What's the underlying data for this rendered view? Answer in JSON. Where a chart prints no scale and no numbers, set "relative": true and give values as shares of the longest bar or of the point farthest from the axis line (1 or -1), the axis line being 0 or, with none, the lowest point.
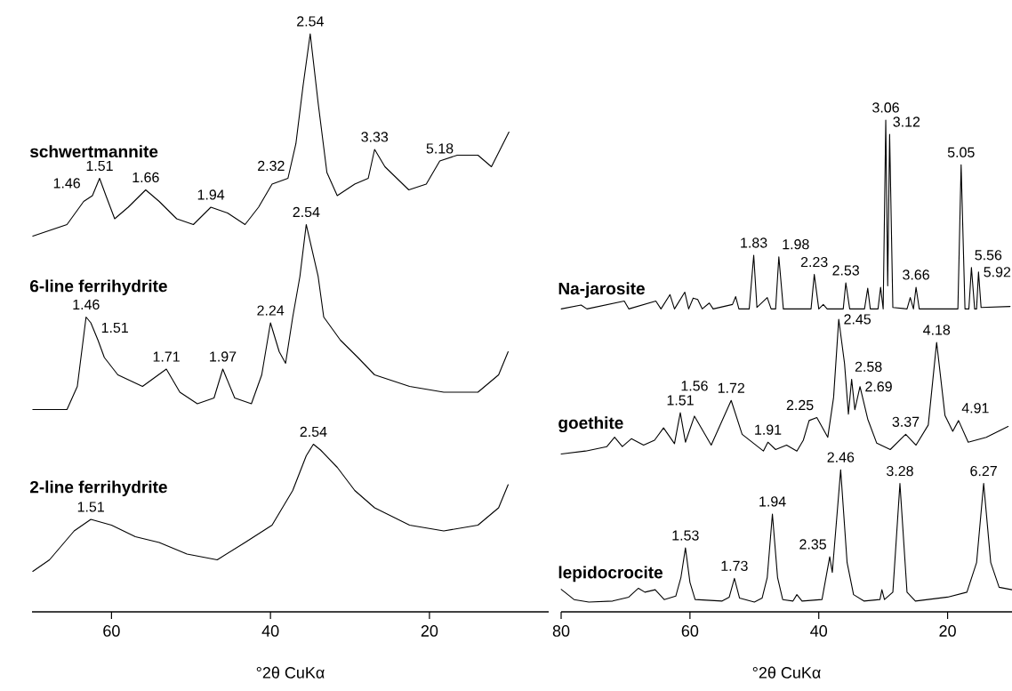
{
  "chart_data": [
    {
      "type": "line",
      "relative": true,
      "xlim": [
        70,
        5
      ],
      "xticks": [
        60,
        40,
        20
      ],
      "xlabel": "°2θ CuKα",
      "series": [
        {
          "name": "schwertmannite",
          "color": "#000000",
          "x": [
            69.9,
            65.6,
            63.5,
            62.4,
            61.5,
            60.7,
            59.6,
            57.9,
            55.7,
            54.0,
            51.8,
            49.7,
            47.5,
            45.4,
            43.2,
            41.5,
            39.8,
            37.8,
            36.8,
            35.9,
            35.0,
            34.0,
            32.9,
            31.6,
            29.4,
            27.7,
            26.9,
            25.6,
            22.6,
            20.4,
            18.7,
            16.5,
            13.9,
            12.2,
            10.0
          ],
          "values": [
            0.65,
            0.67,
            0.71,
            0.72,
            0.75,
            0.72,
            0.68,
            0.7,
            0.73,
            0.71,
            0.68,
            0.67,
            0.7,
            0.69,
            0.67,
            0.7,
            0.74,
            0.75,
            0.81,
            0.91,
            1.0,
            0.88,
            0.76,
            0.72,
            0.74,
            0.75,
            0.8,
            0.77,
            0.73,
            0.74,
            0.78,
            0.79,
            0.79,
            0.77,
            0.83
          ]
        },
        {
          "name": "6-line ferrihydrite",
          "color": "#000000",
          "x": [
            69.9,
            65.6,
            64.3,
            63.2,
            62.6,
            61.7,
            60.9,
            59.2,
            56.1,
            53.1,
            51.4,
            49.2,
            47.1,
            46.0,
            44.5,
            42.4,
            41.1,
            40.0,
            38.9,
            38.1,
            37.2,
            36.3,
            35.5,
            34.0,
            33.3,
            31.2,
            29.0,
            26.9,
            22.5,
            18.2,
            13.9,
            11.3,
            10.1
          ],
          "values": [
            0.35,
            0.35,
            0.39,
            0.51,
            0.5,
            0.47,
            0.44,
            0.41,
            0.39,
            0.42,
            0.38,
            0.36,
            0.37,
            0.42,
            0.37,
            0.36,
            0.41,
            0.5,
            0.45,
            0.43,
            0.51,
            0.58,
            0.67,
            0.58,
            0.51,
            0.47,
            0.44,
            0.41,
            0.39,
            0.38,
            0.38,
            0.41,
            0.45
          ]
        },
        {
          "name": "2-line ferrihydrite",
          "color": "#000000",
          "x": [
            69.9,
            67.8,
            64.7,
            62.6,
            60.0,
            57.0,
            54.0,
            50.5,
            46.7,
            43.2,
            39.8,
            37.2,
            35.5,
            34.6,
            33.7,
            31.6,
            29.4,
            26.9,
            22.5,
            18.2,
            13.9,
            11.3,
            10.1
          ],
          "values": [
            0.07,
            0.09,
            0.14,
            0.16,
            0.15,
            0.13,
            0.12,
            0.1,
            0.09,
            0.12,
            0.15,
            0.21,
            0.27,
            0.29,
            0.28,
            0.25,
            0.21,
            0.18,
            0.15,
            0.14,
            0.15,
            0.18,
            0.22
          ]
        }
      ],
      "annotations": [
        {
          "text": "2.54",
          "x": 35.0,
          "y": 1.0
        },
        {
          "text": "1.46",
          "x": 63.5,
          "y": 0.72
        },
        {
          "text": "1.51",
          "x": 61.5,
          "y": 0.75
        },
        {
          "text": "1.66",
          "x": 55.7,
          "y": 0.73
        },
        {
          "text": "1.94",
          "x": 47.5,
          "y": 0.7
        },
        {
          "text": "2.32",
          "x": 37.8,
          "y": 0.75
        },
        {
          "text": "3.33",
          "x": 26.9,
          "y": 0.8
        },
        {
          "text": "5.18",
          "x": 18.7,
          "y": 0.78
        },
        {
          "text": "2.54",
          "x": 35.5,
          "y": 0.67
        },
        {
          "text": "1.46",
          "x": 63.2,
          "y": 0.51
        },
        {
          "text": "1.51",
          "x": 61.7,
          "y": 0.47
        },
        {
          "text": "1.71",
          "x": 53.1,
          "y": 0.42
        },
        {
          "text": "1.97",
          "x": 46.0,
          "y": 0.42
        },
        {
          "text": "2.24",
          "x": 40.0,
          "y": 0.5
        },
        {
          "text": "2.54",
          "x": 34.6,
          "y": 0.29
        },
        {
          "text": "1.51",
          "x": 62.6,
          "y": 0.16
        }
      ]
    },
    {
      "type": "line",
      "relative": true,
      "xlim": [
        80,
        10
      ],
      "xticks": [
        80,
        60,
        40,
        20
      ],
      "xlabel": "°2θ CuKα",
      "series": [
        {
          "name": "Na-jarosite",
          "color": "#000000",
          "x": [
            80.0,
            76.9,
            76.0,
            70.2,
            69.5,
            65.3,
            64.5,
            63.1,
            62.4,
            60.8,
            60.2,
            59.5,
            58.8,
            58.1,
            57.0,
            56.4,
            53.4,
            52.9,
            52.4,
            50.8,
            50.1,
            49.6,
            48.0,
            47.4,
            46.7,
            46.2,
            45.5,
            41.2,
            40.7,
            40.0,
            39.3,
            38.7,
            36.2,
            35.8,
            35.2,
            32.9,
            32.4,
            32.0,
            30.8,
            30.4,
            30.0,
            29.6,
            29.3,
            29.0,
            28.5,
            26.3,
            25.8,
            25.3,
            24.9,
            24.4,
            18.4,
            17.9,
            17.3,
            16.7,
            16.3,
            15.8,
            15.5,
            15.2,
            14.8,
            10.3
          ],
          "values": [
            0.616,
            0.624,
            0.616,
            0.632,
            0.616,
            0.632,
            0.616,
            0.645,
            0.616,
            0.65,
            0.616,
            0.638,
            0.635,
            0.616,
            0.628,
            0.616,
            0.625,
            0.641,
            0.616,
            0.616,
            0.725,
            0.619,
            0.639,
            0.616,
            0.616,
            0.722,
            0.616,
            0.616,
            0.686,
            0.616,
            0.625,
            0.616,
            0.616,
            0.669,
            0.616,
            0.616,
            0.658,
            0.616,
            0.616,
            0.66,
            0.616,
            1.0,
            0.663,
            0.971,
            0.619,
            0.616,
            0.639,
            0.616,
            0.66,
            0.616,
            0.616,
            0.909,
            0.616,
            0.616,
            0.7,
            0.616,
            0.616,
            0.691,
            0.619,
            0.621
          ]
        },
        {
          "name": "goethite",
          "color": "#000000",
          "x": [
            80.0,
            76.2,
            72.9,
            71.7,
            70.5,
            69.1,
            67.2,
            65.5,
            64.1,
            62.4,
            61.5,
            60.7,
            59.3,
            56.7,
            53.6,
            51.9,
            48.6,
            47.9,
            46.7,
            45.0,
            43.4,
            42.4,
            41.5,
            40.3,
            38.6,
            37.7,
            36.9,
            36.0,
            35.4,
            34.9,
            34.4,
            33.6,
            32.4,
            31.0,
            28.9,
            26.5,
            24.9,
            23.0,
            21.7,
            20.4,
            19.2,
            18.3,
            16.8,
            14.0,
            10.6
          ],
          "values": [
            0.321,
            0.327,
            0.336,
            0.355,
            0.336,
            0.352,
            0.339,
            0.349,
            0.374,
            0.342,
            0.405,
            0.345,
            0.398,
            0.339,
            0.43,
            0.361,
            0.327,
            0.345,
            0.33,
            0.339,
            0.327,
            0.349,
            0.389,
            0.395,
            0.355,
            0.436,
            0.595,
            0.505,
            0.402,
            0.473,
            0.411,
            0.458,
            0.392,
            0.343,
            0.33,
            0.361,
            0.339,
            0.38,
            0.548,
            0.399,
            0.367,
            0.389,
            0.345,
            0.355,
            0.377
          ]
        },
        {
          "name": "lepidocrocite",
          "color": "#000000",
          "x": [
            80.0,
            78.0,
            75.7,
            72.0,
            69.5,
            68.0,
            67.0,
            65.4,
            64.0,
            62.2,
            61.4,
            60.7,
            60.0,
            59.2,
            55.0,
            53.9,
            53.1,
            52.3,
            50.0,
            48.8,
            48.0,
            47.2,
            46.4,
            45.6,
            44.0,
            43.4,
            42.6,
            39.5,
            38.3,
            37.9,
            36.6,
            35.6,
            34.6,
            33.0,
            30.5,
            30.2,
            29.8,
            28.5,
            27.4,
            26.3,
            25.0,
            20.0,
            17.0,
            15.5,
            14.4,
            13.3,
            12.0,
            10.0
          ],
          "values": [
            0.046,
            0.025,
            0.02,
            0.022,
            0.03,
            0.048,
            0.04,
            0.045,
            0.025,
            0.032,
            0.07,
            0.13,
            0.06,
            0.025,
            0.022,
            0.03,
            0.068,
            0.028,
            0.02,
            0.028,
            0.07,
            0.199,
            0.07,
            0.025,
            0.022,
            0.035,
            0.022,
            0.025,
            0.112,
            0.08,
            0.289,
            0.1,
            0.035,
            0.022,
            0.025,
            0.045,
            0.025,
            0.04,
            0.261,
            0.04,
            0.022,
            0.03,
            0.04,
            0.1,
            0.261,
            0.1,
            0.05,
            0.045
          ]
        }
      ],
      "annotations": [
        {
          "text": "3.06",
          "x": 29.6,
          "y": 1.0
        },
        {
          "text": "3.12",
          "x": 29.0,
          "y": 0.971
        },
        {
          "text": "5.05",
          "x": 17.9,
          "y": 0.909
        },
        {
          "text": "1.83",
          "x": 50.1,
          "y": 0.725
        },
        {
          "text": "1.98",
          "x": 46.2,
          "y": 0.722
        },
        {
          "text": "2.23",
          "x": 40.7,
          "y": 0.686
        },
        {
          "text": "2.53",
          "x": 35.8,
          "y": 0.669
        },
        {
          "text": "3.66",
          "x": 24.9,
          "y": 0.66
        },
        {
          "text": "5.56",
          "x": 16.3,
          "y": 0.7
        },
        {
          "text": "5.92",
          "x": 15.2,
          "y": 0.691
        },
        {
          "text": "2.45",
          "x": 36.9,
          "y": 0.595
        },
        {
          "text": "2.58",
          "x": 34.9,
          "y": 0.473
        },
        {
          "text": "2.69",
          "x": 33.6,
          "y": 0.458
        },
        {
          "text": "4.18",
          "x": 21.7,
          "y": 0.548
        },
        {
          "text": "1.51",
          "x": 61.5,
          "y": 0.405
        },
        {
          "text": "1.56",
          "x": 59.3,
          "y": 0.398
        },
        {
          "text": "1.72",
          "x": 53.6,
          "y": 0.43
        },
        {
          "text": "1.91",
          "x": 47.9,
          "y": 0.345
        },
        {
          "text": "2.25",
          "x": 40.3,
          "y": 0.395
        },
        {
          "text": "3.37",
          "x": 26.5,
          "y": 0.361
        },
        {
          "text": "4.91",
          "x": 18.3,
          "y": 0.389
        },
        {
          "text": "2.46",
          "x": 36.6,
          "y": 0.289
        },
        {
          "text": "3.28",
          "x": 27.4,
          "y": 0.261
        },
        {
          "text": "6.27",
          "x": 14.4,
          "y": 0.261
        },
        {
          "text": "1.94",
          "x": 47.2,
          "y": 0.199
        },
        {
          "text": "1.53",
          "x": 60.7,
          "y": 0.13
        },
        {
          "text": "2.35",
          "x": 38.3,
          "y": 0.112
        },
        {
          "text": "1.73",
          "x": 53.1,
          "y": 0.068
        }
      ]
    }
  ]
}
